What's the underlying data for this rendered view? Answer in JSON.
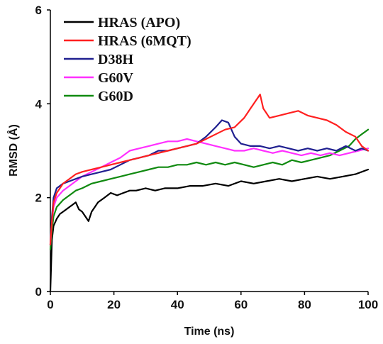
{
  "chart_data": {
    "type": "line",
    "xlabel": "Time (ns)",
    "ylabel": "RMSD (Å)",
    "xlim": [
      0,
      100
    ],
    "ylim": [
      0,
      6
    ],
    "x_ticks": [
      0,
      20,
      40,
      60,
      80,
      100
    ],
    "y_ticks": [
      0,
      2,
      4,
      6
    ],
    "grid": false,
    "legend_position": "top-left",
    "series": [
      {
        "name": "HRAS (APO)",
        "color": "#000000",
        "x": [
          0,
          0.5,
          1,
          2,
          3,
          4,
          5,
          6,
          7,
          8,
          9,
          10,
          11,
          12,
          13,
          15,
          17,
          19,
          21,
          23,
          25,
          27,
          30,
          33,
          36,
          40,
          44,
          48,
          52,
          56,
          60,
          64,
          68,
          72,
          76,
          80,
          84,
          88,
          92,
          96,
          100
        ],
        "y": [
          0.0,
          1.1,
          1.4,
          1.55,
          1.65,
          1.7,
          1.75,
          1.8,
          1.85,
          1.9,
          1.75,
          1.7,
          1.6,
          1.5,
          1.7,
          1.9,
          2.0,
          2.1,
          2.05,
          2.1,
          2.15,
          2.15,
          2.2,
          2.15,
          2.2,
          2.2,
          2.25,
          2.25,
          2.3,
          2.25,
          2.35,
          2.3,
          2.35,
          2.4,
          2.35,
          2.4,
          2.45,
          2.4,
          2.45,
          2.5,
          2.6
        ]
      },
      {
        "name": "HRAS (6MQT)",
        "color": "#ff2020",
        "x": [
          0,
          0.5,
          1,
          2,
          4,
          6,
          8,
          10,
          13,
          16,
          19,
          22,
          25,
          28,
          31,
          34,
          37,
          40,
          43,
          46,
          49,
          52,
          55,
          58,
          61,
          63,
          65,
          66,
          67,
          69,
          72,
          75,
          78,
          81,
          84,
          87,
          90,
          93,
          96,
          98,
          100
        ],
        "y": [
          1.0,
          1.5,
          1.9,
          2.1,
          2.3,
          2.4,
          2.5,
          2.55,
          2.6,
          2.65,
          2.7,
          2.75,
          2.8,
          2.85,
          2.9,
          2.95,
          3.0,
          3.05,
          3.1,
          3.15,
          3.25,
          3.35,
          3.45,
          3.5,
          3.7,
          3.9,
          4.1,
          4.2,
          3.9,
          3.7,
          3.75,
          3.8,
          3.85,
          3.75,
          3.7,
          3.65,
          3.55,
          3.4,
          3.3,
          3.1,
          3.0
        ]
      },
      {
        "name": "D38H",
        "color": "#202090",
        "x": [
          0,
          0.5,
          1,
          2,
          4,
          6,
          8,
          10,
          13,
          16,
          19,
          22,
          25,
          28,
          31,
          34,
          37,
          40,
          43,
          46,
          49,
          52,
          54,
          56,
          58,
          60,
          63,
          66,
          69,
          72,
          75,
          78,
          81,
          84,
          87,
          90,
          93,
          96,
          98,
          100
        ],
        "y": [
          1.0,
          1.6,
          2.0,
          2.2,
          2.3,
          2.35,
          2.4,
          2.45,
          2.5,
          2.55,
          2.6,
          2.7,
          2.8,
          2.85,
          2.9,
          3.0,
          3.0,
          3.05,
          3.1,
          3.15,
          3.3,
          3.5,
          3.65,
          3.6,
          3.3,
          3.15,
          3.1,
          3.1,
          3.05,
          3.1,
          3.05,
          3.0,
          3.05,
          3.0,
          3.05,
          3.0,
          3.1,
          3.0,
          3.05,
          3.0
        ]
      },
      {
        "name": "G60V",
        "color": "#ff30ff",
        "x": [
          0,
          0.5,
          1,
          2,
          4,
          6,
          8,
          10,
          13,
          16,
          19,
          22,
          25,
          28,
          31,
          34,
          37,
          40,
          43,
          46,
          49,
          52,
          55,
          58,
          61,
          64,
          67,
          70,
          73,
          76,
          79,
          82,
          85,
          88,
          91,
          94,
          97,
          100
        ],
        "y": [
          1.0,
          1.5,
          1.8,
          2.0,
          2.15,
          2.25,
          2.35,
          2.45,
          2.55,
          2.65,
          2.75,
          2.85,
          3.0,
          3.05,
          3.1,
          3.15,
          3.2,
          3.2,
          3.25,
          3.2,
          3.15,
          3.1,
          3.05,
          3.0,
          3.0,
          3.05,
          3.0,
          2.95,
          3.0,
          2.95,
          2.9,
          2.95,
          2.9,
          2.95,
          2.9,
          2.95,
          3.0,
          3.05
        ]
      },
      {
        "name": "G60D",
        "color": "#108a10",
        "x": [
          0,
          0.5,
          1,
          2,
          4,
          6,
          8,
          10,
          13,
          16,
          19,
          22,
          25,
          28,
          31,
          34,
          37,
          40,
          43,
          46,
          49,
          52,
          55,
          58,
          61,
          64,
          67,
          70,
          73,
          76,
          79,
          82,
          85,
          88,
          91,
          94,
          96,
          98,
          100
        ],
        "y": [
          0.9,
          1.3,
          1.6,
          1.8,
          1.95,
          2.05,
          2.15,
          2.2,
          2.3,
          2.35,
          2.4,
          2.45,
          2.5,
          2.55,
          2.6,
          2.65,
          2.65,
          2.7,
          2.7,
          2.75,
          2.7,
          2.75,
          2.7,
          2.75,
          2.7,
          2.65,
          2.7,
          2.75,
          2.7,
          2.8,
          2.75,
          2.8,
          2.85,
          2.9,
          3.0,
          3.1,
          3.25,
          3.35,
          3.45
        ]
      }
    ]
  }
}
